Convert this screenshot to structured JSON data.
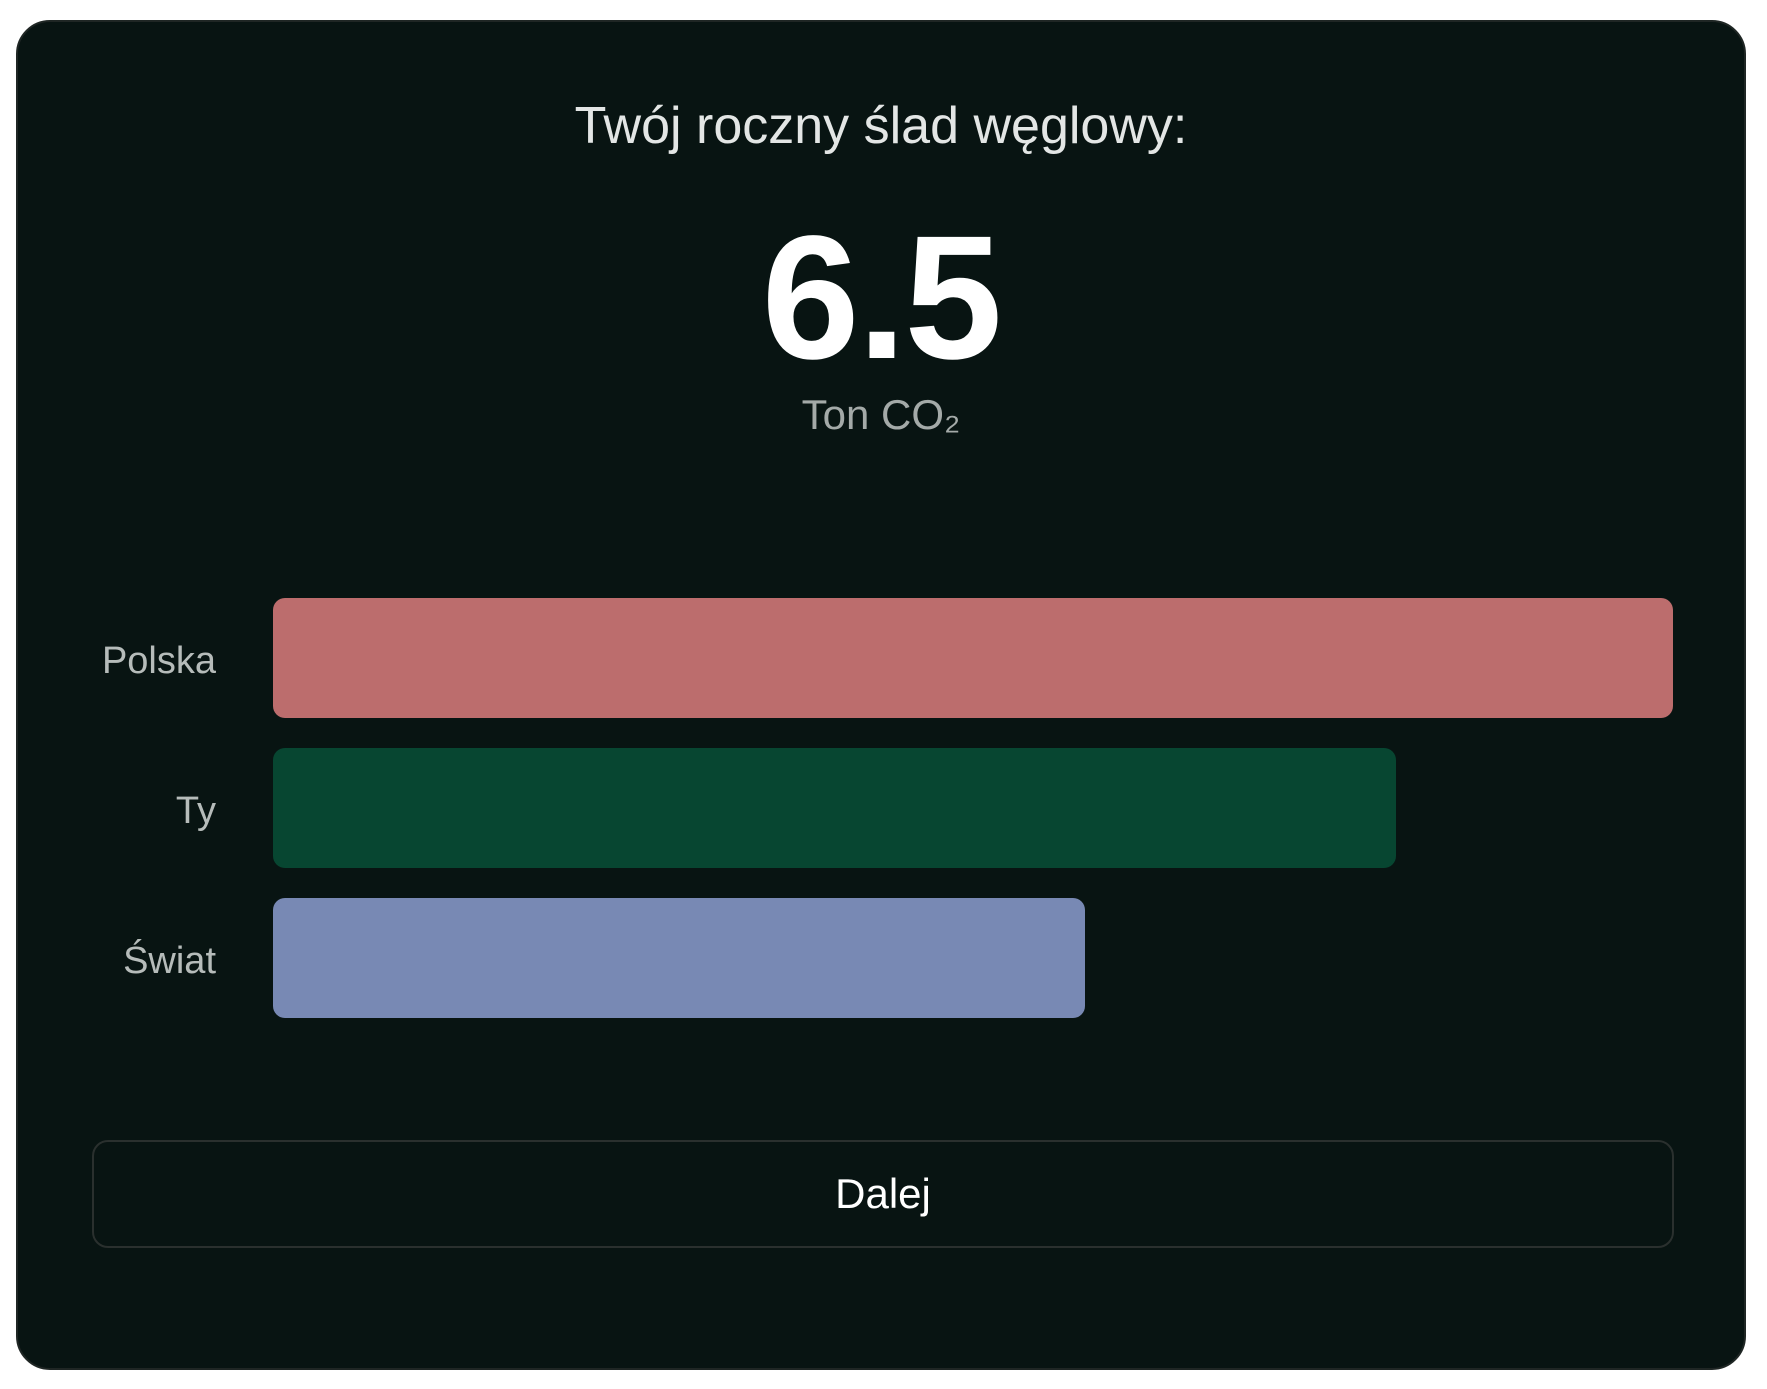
{
  "card": {
    "title": "Twój roczny ślad węglowy:",
    "value": "6.5",
    "unit": "Ton CO₂"
  },
  "chart_data": {
    "type": "bar",
    "orientation": "horizontal",
    "categories": [
      "Polska",
      "Ty",
      "Świat"
    ],
    "values": [
      8.1,
      6.5,
      4.7
    ],
    "colors": [
      "#bc6d6d",
      "#074631",
      "#7889b4"
    ],
    "xlim": [
      0,
      8.1
    ]
  },
  "actions": {
    "next_label": "Dalej"
  }
}
